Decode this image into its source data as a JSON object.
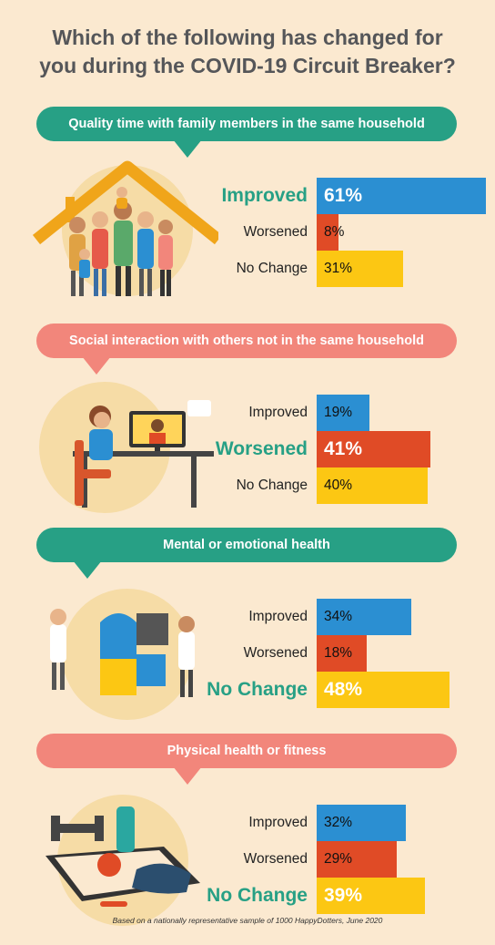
{
  "title_line1": "Which of the following has changed for",
  "title_line2": "you during the COVID-19 Circuit Breaker?",
  "footnote": "Based on a nationally representative sample of 1000 HappyDotters, June 2020",
  "colors": {
    "background": "#fbe9d0",
    "banner_green": "#27a085",
    "banner_pink": "#f2867b",
    "improved": "#2b8fd2",
    "worsened": "#e04b26",
    "no_change": "#fcc713",
    "highlight_text": "#27a085"
  },
  "chart_data": [
    {
      "type": "bar",
      "title": "Quality time with family members in the same household",
      "categories": [
        "Improved",
        "Worsened",
        "No Change"
      ],
      "values": [
        61,
        8,
        31
      ],
      "value_labels": [
        "61%",
        "8%",
        "31%"
      ],
      "highlight": "Improved",
      "banner_color": "green",
      "icon": "family-house-icon"
    },
    {
      "type": "bar",
      "title": "Social interaction with others not in the same household",
      "categories": [
        "Improved",
        "Worsened",
        "No Change"
      ],
      "values": [
        19,
        41,
        40
      ],
      "value_labels": [
        "19%",
        "41%",
        "40%"
      ],
      "highlight": "Worsened",
      "banner_color": "pink",
      "icon": "video-call-icon"
    },
    {
      "type": "bar",
      "title": "Mental or emotional health",
      "categories": [
        "Improved",
        "Worsened",
        "No Change"
      ],
      "values": [
        34,
        18,
        48
      ],
      "value_labels": [
        "34%",
        "18%",
        "48%"
      ],
      "highlight": "No Change",
      "banner_color": "green",
      "icon": "puzzle-head-icon"
    },
    {
      "type": "bar",
      "title": "Physical health or fitness",
      "categories": [
        "Improved",
        "Worsened",
        "No Change"
      ],
      "values": [
        32,
        29,
        39
      ],
      "value_labels": [
        "32%",
        "29%",
        "39%"
      ],
      "highlight": "No Change",
      "banner_color": "pink",
      "icon": "fitness-phone-icon"
    }
  ]
}
